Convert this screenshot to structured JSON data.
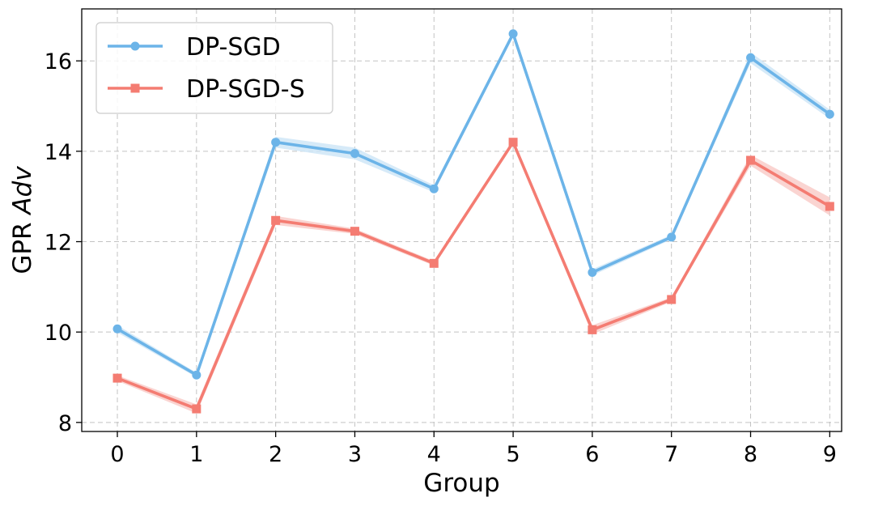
{
  "chart_data": {
    "type": "line",
    "xlabel": "Group",
    "ylabel_prefix": "GPR ",
    "ylabel_italic": "Adv",
    "x": [
      0,
      1,
      2,
      3,
      4,
      5,
      6,
      7,
      8,
      9
    ],
    "xlim": [
      -0.45,
      9.15
    ],
    "ylim": [
      7.8,
      17.15
    ],
    "xticks": [
      0,
      1,
      2,
      3,
      4,
      5,
      6,
      7,
      8,
      9
    ],
    "yticks": [
      8,
      10,
      12,
      14,
      16
    ],
    "grid": true,
    "legend_position": "top-left",
    "series": [
      {
        "name": "DP-SGD",
        "marker": "circle",
        "color": "#6cb4e8",
        "band_color": "#cfe6f7",
        "values": [
          10.07,
          9.05,
          14.2,
          13.95,
          13.17,
          16.6,
          11.32,
          12.1,
          16.07,
          14.82
        ],
        "band": [
          0.08,
          0.05,
          0.12,
          0.13,
          0.08,
          0.05,
          0.07,
          0.05,
          0.12,
          0.1
        ]
      },
      {
        "name": "DP-SGD-S",
        "marker": "square",
        "color": "#f47c72",
        "band_color": "#f9cdc9",
        "values": [
          8.98,
          8.3,
          12.47,
          12.23,
          11.52,
          14.2,
          10.05,
          10.72,
          13.8,
          12.78
        ],
        "band": [
          0.06,
          0.1,
          0.1,
          0.06,
          0.05,
          0.06,
          0.1,
          0.05,
          0.12,
          0.2
        ]
      }
    ]
  }
}
